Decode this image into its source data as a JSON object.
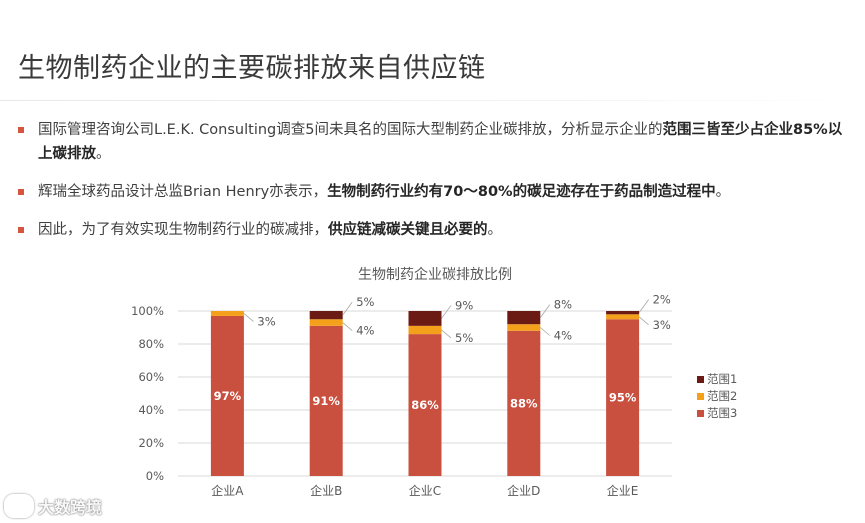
{
  "slide": {
    "title": "生物制药企业的主要碳排放来自供应链",
    "bullets": [
      {
        "text1": "国际管理咨询公司L.E.K. Consulting调查5间未具名的国际大型制药企业碳排放，分析显示企业的",
        "bold": "范围三皆至少占企业85%以上碳排放",
        "text2": "。"
      },
      {
        "text1": "辉瑞全球药品设计总监Brian Henry亦表示，",
        "bold": "生物制药行业约有70～80%的碳足迹存在于药品制造过程中",
        "text2": "。"
      },
      {
        "text1": "因此，为了有效实现生物制药行业的碳减排，",
        "bold": "供应链减碳关键且必要的",
        "text2": "。"
      }
    ]
  },
  "watermark": {
    "text": "大数跨境"
  },
  "chart_data": {
    "type": "bar",
    "stacked": true,
    "title": "生物制药企业碳排放比例",
    "categories": [
      "企业A",
      "企业B",
      "企业C",
      "企业D",
      "企业E"
    ],
    "series": [
      {
        "name": "范围3",
        "values": [
          97,
          91,
          86,
          88,
          95
        ],
        "labels": [
          "97%",
          "91%",
          "86%",
          "88%",
          "95%"
        ],
        "color": "#c9503f"
      },
      {
        "name": "范围2",
        "values": [
          3,
          4,
          5,
          4,
          3
        ],
        "labels": [
          "3%",
          "4%",
          "5%",
          "4%",
          "3%"
        ],
        "color": "#f5a01a"
      },
      {
        "name": "范围1",
        "values": [
          0,
          5,
          9,
          8,
          2
        ],
        "labels": [
          "",
          "5%",
          "9%",
          "8%",
          "2%"
        ],
        "color": "#6b1a14"
      }
    ],
    "ylim": [
      0,
      100
    ],
    "yticks": [
      "0%",
      "20%",
      "40%",
      "60%",
      "80%",
      "100%"
    ],
    "legend": [
      {
        "name": "范围1",
        "color": "#6b1a14"
      },
      {
        "name": "范围2",
        "color": "#f5a01a"
      },
      {
        "name": "范围3",
        "color": "#c9503f"
      }
    ],
    "legend_position": "right",
    "grid": true
  }
}
